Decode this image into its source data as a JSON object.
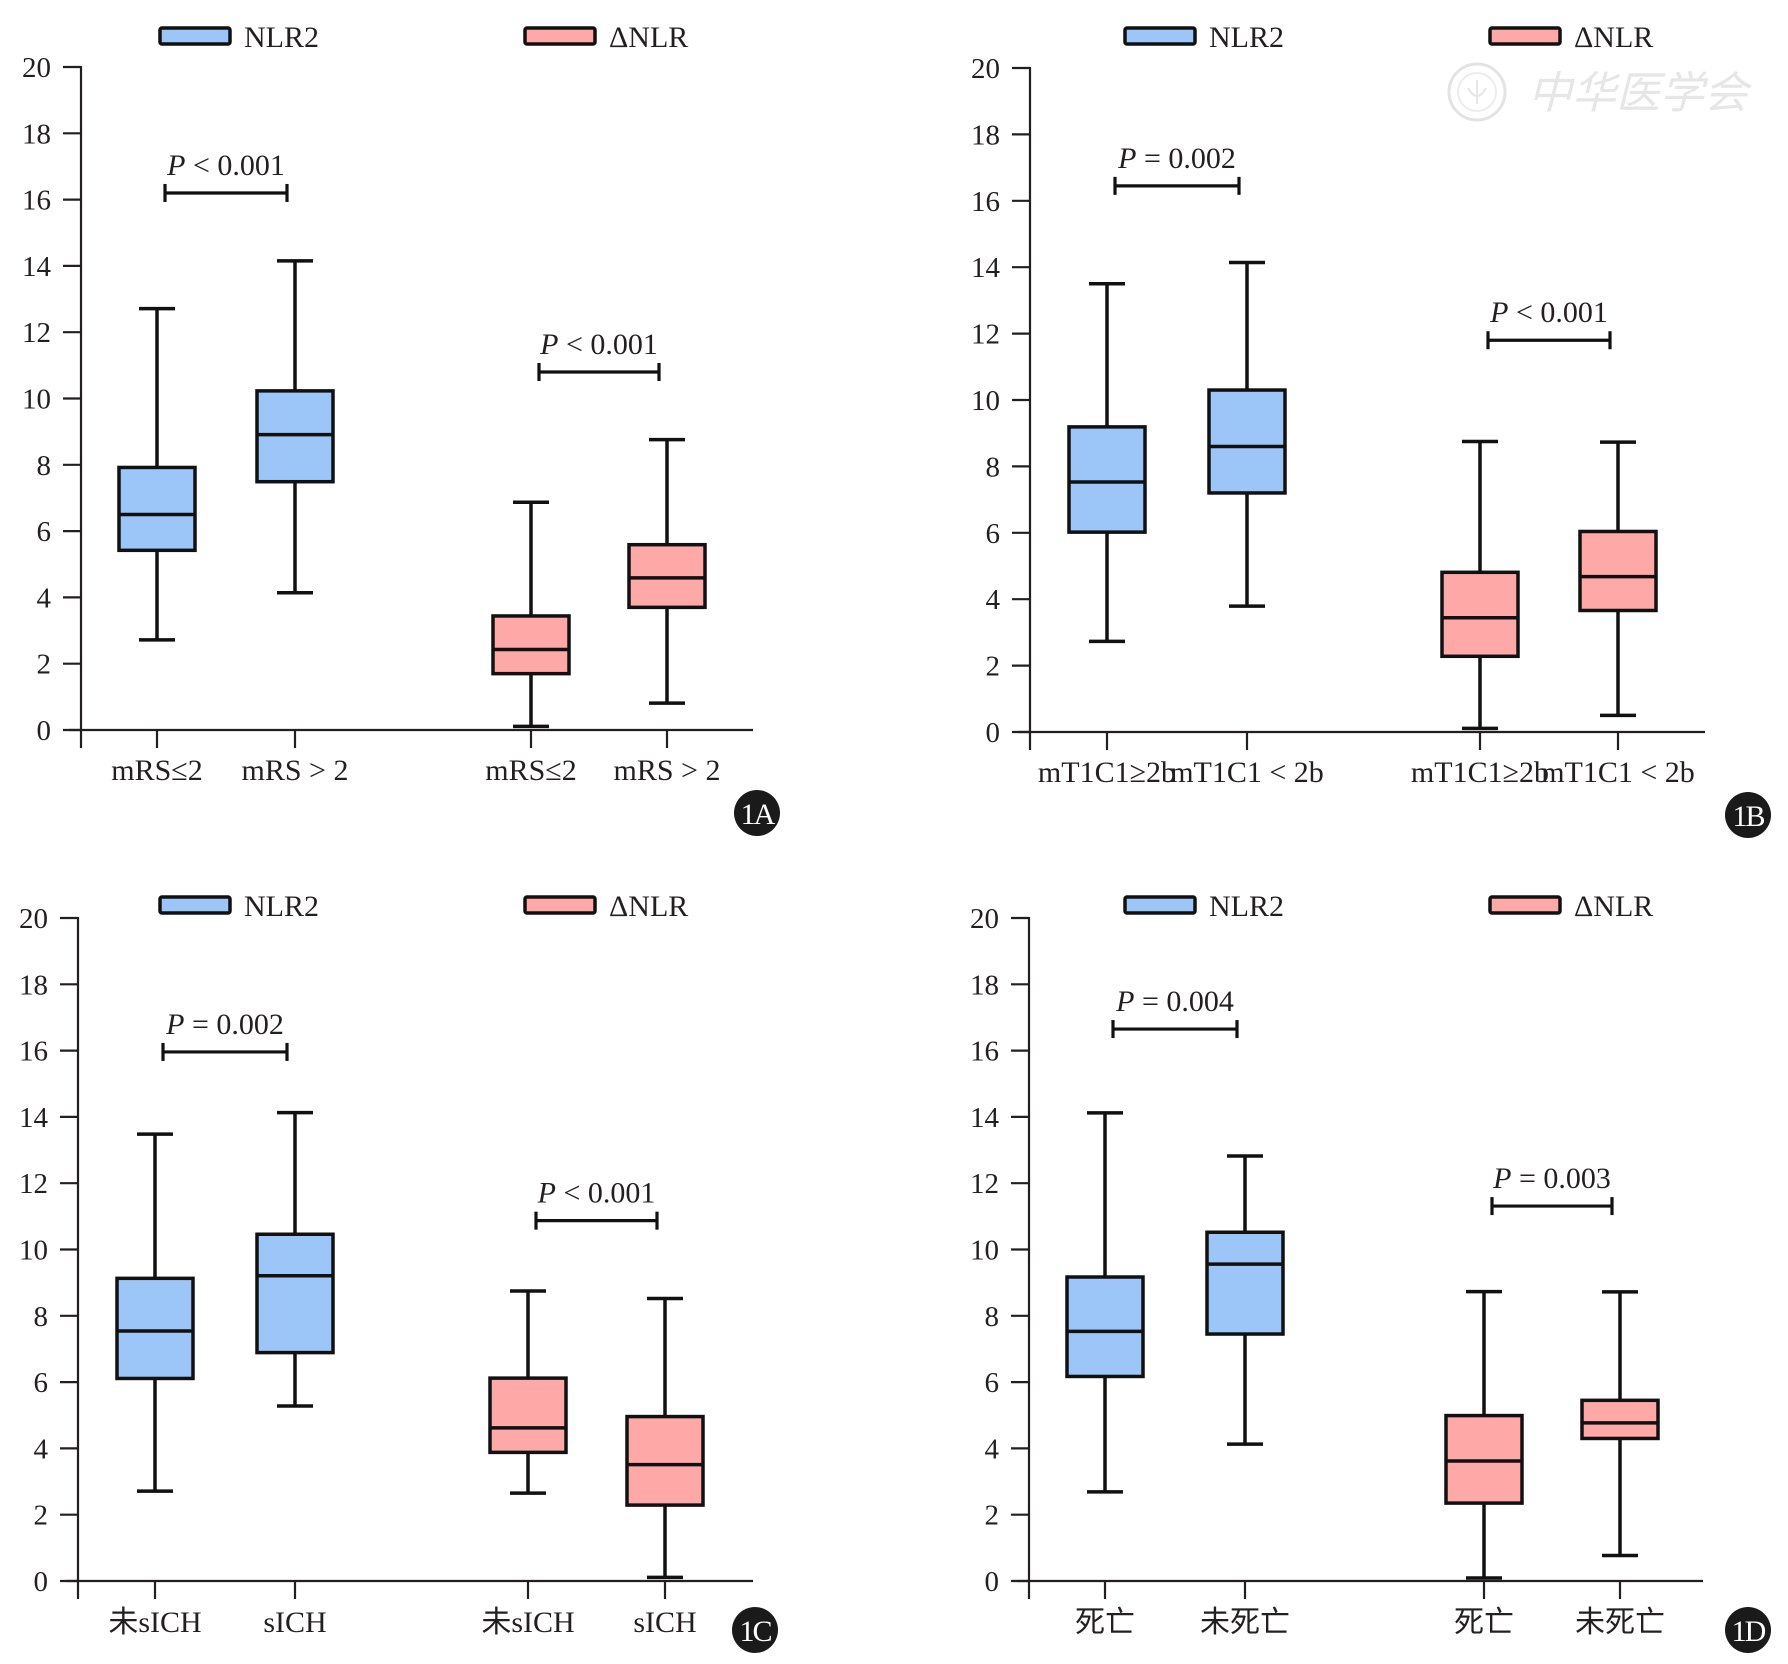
{
  "figure": {
    "watermark": {
      "icon": "society-emblem-icon",
      "text": "中华医学会"
    }
  },
  "chart_data": [
    {
      "id": "1A",
      "type": "box",
      "badge": "1A",
      "ylim": [
        0,
        20
      ],
      "yticks": [
        0,
        2,
        4,
        6,
        8,
        10,
        12,
        14,
        16,
        18,
        20
      ],
      "legend": [
        {
          "name": "NLR2",
          "color": "#9dc6f8"
        },
        {
          "name": "ΔNLR",
          "color": "#ffa8a8"
        }
      ],
      "legend_position": "top",
      "categories": [
        "mRS≤2",
        "mRS > 2",
        "mRS≤2",
        "mRS > 2"
      ],
      "boxes": [
        {
          "series": "NLR2",
          "category": "mRS≤2",
          "min": 2.72,
          "q1": 5.42,
          "median": 6.5,
          "q3": 7.92,
          "max": 12.71
        },
        {
          "series": "NLR2",
          "category": "mRS > 2",
          "min": 4.14,
          "q1": 7.49,
          "median": 8.91,
          "q3": 10.23,
          "max": 14.15
        },
        {
          "series": "ΔNLR",
          "category": "mRS≤2",
          "min": 0.11,
          "q1": 1.7,
          "median": 2.43,
          "q3": 3.44,
          "max": 6.87
        },
        {
          "series": "ΔNLR",
          "category": "mRS > 2",
          "min": 0.81,
          "q1": 3.7,
          "median": 4.59,
          "q3": 5.59,
          "max": 8.76
        }
      ],
      "comparisons": [
        {
          "between": [
            0,
            1
          ],
          "y": 16.2,
          "label_p": "P",
          "label_rest": " < 0.001"
        },
        {
          "between": [
            2,
            3
          ],
          "y": 10.8,
          "label_p": "P",
          "label_rest": " < 0.001"
        }
      ]
    },
    {
      "id": "1B",
      "type": "box",
      "badge": "1B",
      "ylim": [
        0,
        20
      ],
      "yticks": [
        0,
        2,
        4,
        6,
        8,
        10,
        12,
        14,
        16,
        18,
        20
      ],
      "legend": [
        {
          "name": "NLR2",
          "color": "#9dc6f8"
        },
        {
          "name": "ΔNLR",
          "color": "#ffa8a8"
        }
      ],
      "legend_position": "top",
      "categories": [
        "mT1C1≥2b",
        "mT1C1 < 2b",
        "mT1C1≥2b",
        "mT1C1 < 2b"
      ],
      "boxes": [
        {
          "series": "NLR2",
          "category": "mT1C1≥2b",
          "min": 2.73,
          "q1": 6.02,
          "median": 7.53,
          "q3": 9.19,
          "max": 13.5
        },
        {
          "series": "NLR2",
          "category": "mT1C1 < 2b",
          "min": 3.79,
          "q1": 7.2,
          "median": 8.6,
          "q3": 10.3,
          "max": 14.14
        },
        {
          "series": "ΔNLR",
          "category": "mT1C1≥2b",
          "min": 0.11,
          "q1": 2.28,
          "median": 3.44,
          "q3": 4.81,
          "max": 8.75
        },
        {
          "series": "ΔNLR",
          "category": "mT1C1 < 2b",
          "min": 0.5,
          "q1": 3.66,
          "median": 4.68,
          "q3": 6.04,
          "max": 8.73
        }
      ],
      "comparisons": [
        {
          "between": [
            0,
            1
          ],
          "y": 16.45,
          "label_p": "P",
          "label_rest": " = 0.002"
        },
        {
          "between": [
            2,
            3
          ],
          "y": 11.8,
          "label_p": "P",
          "label_rest": " < 0.001"
        }
      ]
    },
    {
      "id": "1C",
      "type": "box",
      "badge": "1C",
      "ylim": [
        0,
        20
      ],
      "yticks": [
        0,
        2,
        4,
        6,
        8,
        10,
        12,
        14,
        16,
        18,
        20
      ],
      "legend": [
        {
          "name": "NLR2",
          "color": "#9dc6f8"
        },
        {
          "name": "ΔNLR",
          "color": "#ffa8a8"
        }
      ],
      "legend_position": "top",
      "categories": [
        "未sICH",
        "sICH",
        "未sICH",
        "sICH"
      ],
      "boxes": [
        {
          "series": "NLR2",
          "category": "未sICH",
          "min": 2.71,
          "q1": 6.11,
          "median": 7.54,
          "q3": 9.13,
          "max": 13.48
        },
        {
          "series": "NLR2",
          "category": "sICH",
          "min": 5.28,
          "q1": 6.89,
          "median": 9.21,
          "q3": 10.46,
          "max": 14.13
        },
        {
          "series": "ΔNLR",
          "category": "未sICH",
          "min": 2.65,
          "q1": 3.88,
          "median": 4.62,
          "q3": 6.12,
          "max": 8.75
        },
        {
          "series": "ΔNLR",
          "category": "sICH",
          "min": 0.11,
          "q1": 2.29,
          "median": 3.51,
          "q3": 4.96,
          "max": 8.52
        }
      ],
      "comparisons": [
        {
          "between": [
            0,
            1
          ],
          "y": 15.96,
          "label_p": "P",
          "label_rest": " = 0.002"
        },
        {
          "between": [
            2,
            3
          ],
          "y": 10.87,
          "label_p": "P",
          "label_rest": " < 0.001"
        }
      ]
    },
    {
      "id": "1D",
      "type": "box",
      "badge": "1D",
      "ylim": [
        0,
        20
      ],
      "yticks": [
        0,
        2,
        4,
        6,
        8,
        10,
        12,
        14,
        16,
        18,
        20
      ],
      "legend": [
        {
          "name": "NLR2",
          "color": "#9dc6f8"
        },
        {
          "name": "ΔNLR",
          "color": "#ffa8a8"
        }
      ],
      "legend_position": "top",
      "categories": [
        "死亡",
        "未死亡",
        "死亡",
        "未死亡"
      ],
      "boxes": [
        {
          "series": "NLR2",
          "category": "死亡",
          "min": 2.69,
          "q1": 6.17,
          "median": 7.53,
          "q3": 9.17,
          "max": 14.12
        },
        {
          "series": "NLR2",
          "category": "未死亡",
          "min": 4.13,
          "q1": 7.45,
          "median": 9.56,
          "q3": 10.52,
          "max": 12.82
        },
        {
          "series": "ΔNLR",
          "category": "死亡",
          "min": 0.09,
          "q1": 2.35,
          "median": 3.62,
          "q3": 4.99,
          "max": 8.73
        },
        {
          "series": "ΔNLR",
          "category": "未死亡",
          "min": 0.77,
          "q1": 4.3,
          "median": 4.77,
          "q3": 5.45,
          "max": 8.72
        }
      ],
      "comparisons": [
        {
          "between": [
            0,
            1
          ],
          "y": 16.65,
          "label_p": "P",
          "label_rest": " = 0.004"
        },
        {
          "between": [
            2,
            3
          ],
          "y": 11.31,
          "label_p": "P",
          "label_rest": " = 0.003"
        }
      ]
    }
  ]
}
